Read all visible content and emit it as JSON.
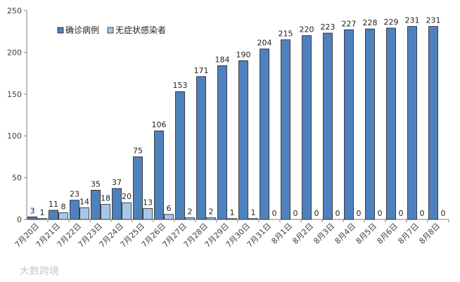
{
  "chart_data": {
    "type": "bar",
    "categories": [
      "7月20日",
      "7月21日",
      "7月22日",
      "7月23日",
      "7月24日",
      "7月25日",
      "7月26日",
      "7月27日",
      "7月28日",
      "7月29日",
      "7月30日",
      "7月31日",
      "8月1日",
      "8月2日",
      "8月3日",
      "8月4日",
      "8月5日",
      "8月6日",
      "8月7日",
      "8月8日"
    ],
    "series": [
      {
        "name": "确诊病例",
        "values": [
          3,
          11,
          23,
          35,
          37,
          75,
          106,
          153,
          171,
          184,
          190,
          204,
          215,
          220,
          223,
          227,
          228,
          229,
          231,
          231
        ],
        "color": "#4f81bd"
      },
      {
        "name": "无症状感染者",
        "values": [
          1,
          8,
          14,
          18,
          20,
          13,
          6,
          2,
          2,
          1,
          1,
          0,
          0,
          0,
          0,
          0,
          0,
          0,
          0,
          0
        ],
        "color": "#a7c7e7"
      }
    ],
    "ylim": [
      0,
      250
    ],
    "yticks": [
      0,
      50,
      100,
      150,
      200,
      250
    ],
    "grid": false,
    "legend": "top-left",
    "title": "",
    "xlabel": "",
    "ylabel": ""
  },
  "watermark": "大数跨境"
}
